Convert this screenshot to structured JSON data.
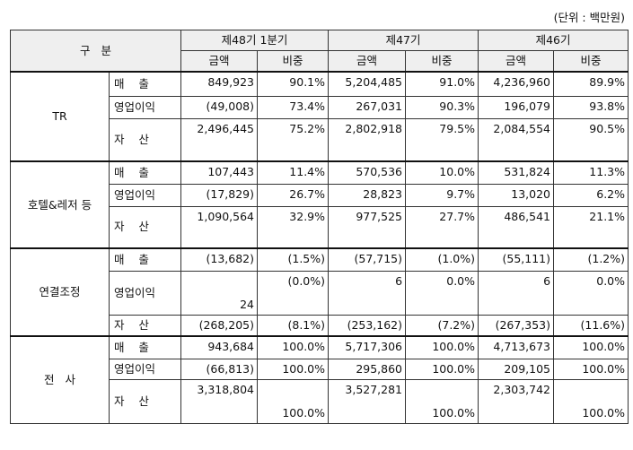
{
  "unit_note": "(단위 : 백만원)",
  "header": {
    "category": "구   분",
    "periods": [
      "제48기 1분기",
      "제47기",
      "제46기"
    ],
    "amount": "금액",
    "share": "비중"
  },
  "groups": [
    {
      "name": "TR",
      "rows": [
        {
          "label": "매    출",
          "v": [
            "849,923",
            "90.1%",
            "5,204,485",
            "91.0%",
            "4,236,960",
            "89.9%"
          ]
        },
        {
          "label": "영업이익",
          "v": [
            "(49,008)",
            "73.4%",
            "267,031",
            "90.3%",
            "196,079",
            "93.8%"
          ]
        },
        {
          "label": "자    산",
          "v": [
            "2,496,445",
            "75.2%",
            "2,802,918",
            "79.5%",
            "2,084,554",
            "90.5%"
          ]
        }
      ]
    },
    {
      "name": "호텔&레저 등",
      "rows": [
        {
          "label": "매    출",
          "v": [
            "107,443",
            "11.4%",
            "570,536",
            "10.0%",
            "531,824",
            "11.3%"
          ]
        },
        {
          "label": "영업이익",
          "v": [
            "(17,829)",
            "26.7%",
            "28,823",
            "9.7%",
            "13,020",
            "6.2%"
          ]
        },
        {
          "label": "자    산",
          "v": [
            "1,090,564",
            "32.9%",
            "977,525",
            "27.7%",
            "486,541",
            "21.1%"
          ]
        }
      ]
    },
    {
      "name": "연결조정",
      "rows": [
        {
          "label": "매    출",
          "v": [
            "(13,682)",
            "(1.5%)",
            "(57,715)",
            "(1.0%)",
            "(55,111)",
            "(1.2%)"
          ]
        },
        {
          "label": "영업이익",
          "v": [
            "24",
            "(0.0%)",
            "6",
            "0.0%",
            "6",
            "0.0%"
          ]
        },
        {
          "label": "자    산",
          "v": [
            "(268,205)",
            "(8.1%)",
            "(253,162)",
            "(7.2%)",
            "(267,353)",
            "(11.6%)"
          ]
        }
      ]
    },
    {
      "name": "전   사",
      "rows": [
        {
          "label": "매    출",
          "v": [
            "943,684",
            "100.0%",
            "5,717,306",
            "100.0%",
            "4,713,673",
            "100.0%"
          ]
        },
        {
          "label": "영업이익",
          "v": [
            "(66,813)",
            "100.0%",
            "295,860",
            "100.0%",
            "209,105",
            "100.0%"
          ]
        },
        {
          "label": "자    산",
          "v": [
            "3,318,804",
            "100.0%",
            "3,527,281",
            "100.0%",
            "2,303,742",
            "100.0%"
          ]
        }
      ]
    }
  ]
}
